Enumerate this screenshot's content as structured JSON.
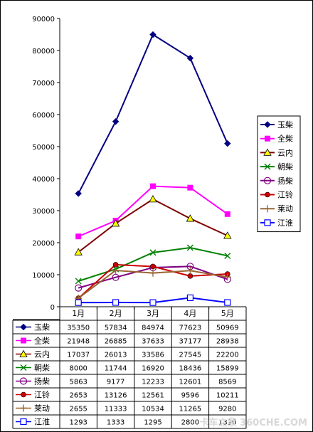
{
  "chart_data": {
    "type": "line",
    "categories": [
      "1月",
      "2月",
      "3月",
      "4月",
      "5月"
    ],
    "ylim": [
      0,
      90000
    ],
    "yticks": [
      0,
      10000,
      20000,
      30000,
      40000,
      50000,
      60000,
      70000,
      80000,
      90000
    ],
    "grid": false,
    "legend": "right",
    "title": "",
    "xlabel": "",
    "ylabel": "",
    "series": [
      {
        "name": "玉柴",
        "values": [
          35350,
          57834,
          84974,
          77623,
          50969
        ],
        "color": "#000080",
        "marker": "diamond"
      },
      {
        "name": "全柴",
        "values": [
          21948,
          26885,
          37633,
          37177,
          28938
        ],
        "color": "#ff00ff",
        "marker": "square"
      },
      {
        "name": "云内",
        "values": [
          17037,
          26013,
          33586,
          27545,
          22200
        ],
        "color": "#800000",
        "marker": "triangle"
      },
      {
        "name": "朝柴",
        "values": [
          8000,
          11744,
          16920,
          18436,
          15899
        ],
        "color": "#008000",
        "marker": "x"
      },
      {
        "name": "扬柴",
        "values": [
          5863,
          9177,
          12233,
          12601,
          8569
        ],
        "color": "#800080",
        "marker": "circle"
      },
      {
        "name": "江铃",
        "values": [
          2653,
          13126,
          12561,
          9596,
          10211
        ],
        "color": "#cc0000",
        "marker": "dot"
      },
      {
        "name": "莱动",
        "values": [
          2655,
          11333,
          10534,
          11265,
          9280
        ],
        "color": "#996633",
        "marker": "plus"
      },
      {
        "name": "江淮",
        "values": [
          1293,
          1333,
          1295,
          2800,
          1320
        ],
        "color": "#0000ff",
        "marker": "opensquare"
      }
    ]
  },
  "watermark": "卡车之家 360CHE.COM"
}
